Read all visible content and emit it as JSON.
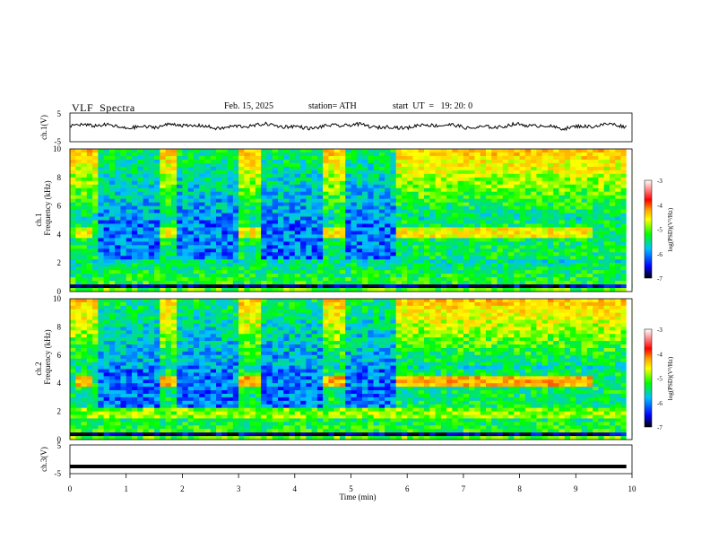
{
  "header": {
    "title": "VLF  Spectra",
    "date": "Feb. 15, 2025",
    "station": "station= ATH",
    "start": "start  UT  =   19: 20: 0"
  },
  "chart_data": {
    "type": "heatmap",
    "xlabel": "Time  (min)",
    "xlim": [
      0,
      10
    ],
    "x_ticks": [
      "0",
      "1",
      "2",
      "3",
      "4",
      "5",
      "6",
      "7",
      "8",
      "9",
      "10"
    ],
    "panels": [
      {
        "id": "ch1-voltage",
        "type": "line",
        "ylabel": "ch.1(V)",
        "ylim": [
          -5,
          5
        ],
        "y_ticks": [
          "5",
          "-5"
        ],
        "baseline_v": 0.4
      },
      {
        "id": "ch1-spectrogram",
        "type": "heatmap",
        "ylabel_top": "ch.1",
        "ylabel": "Frequency  (kHz)",
        "ylim": [
          0,
          10
        ],
        "y_ticks": [
          "10",
          "8",
          "6",
          "4",
          "2",
          "0"
        ]
      },
      {
        "id": "ch2-spectrogram",
        "type": "heatmap",
        "ylabel_top": "ch.2",
        "ylabel": "Frequency  (kHz)",
        "ylim": [
          0,
          10
        ],
        "y_ticks": [
          "10",
          "8",
          "6",
          "4",
          "2",
          "0"
        ]
      },
      {
        "id": "ch3-voltage",
        "type": "line",
        "ylabel": "ch.3(V)",
        "ylim": [
          -5,
          5
        ],
        "y_ticks": [
          "5",
          "-5"
        ],
        "baseline_v": -2.5
      }
    ],
    "colorbar": {
      "label": "log(PSD)(V²/Hz)",
      "range": [
        -7,
        -3
      ],
      "ticks": [
        "-3",
        "-4",
        "-5",
        "-6",
        "-7"
      ],
      "colormap": [
        "#ffffff",
        "#ff8080",
        "#ff0000",
        "#ffa000",
        "#ffff00",
        "#00ff00",
        "#00c0ff",
        "#0000ff",
        "#000000"
      ]
    },
    "events": {
      "quiet_intervals_min": [
        [
          0.45,
          1.55
        ],
        [
          1.9,
          2.95
        ],
        [
          3.4,
          4.45
        ],
        [
          4.9,
          5.75
        ]
      ],
      "narrowband_tone_khz": 4.1,
      "narrowband_tone_min": [
        [
          0.1,
          0.4
        ],
        [
          1.55,
          1.9
        ],
        [
          2.95,
          3.4
        ],
        [
          4.45,
          4.9
        ],
        [
          5.75,
          9.25
        ]
      ],
      "low_band_khz": [
        1.0,
        2.0
      ]
    }
  }
}
